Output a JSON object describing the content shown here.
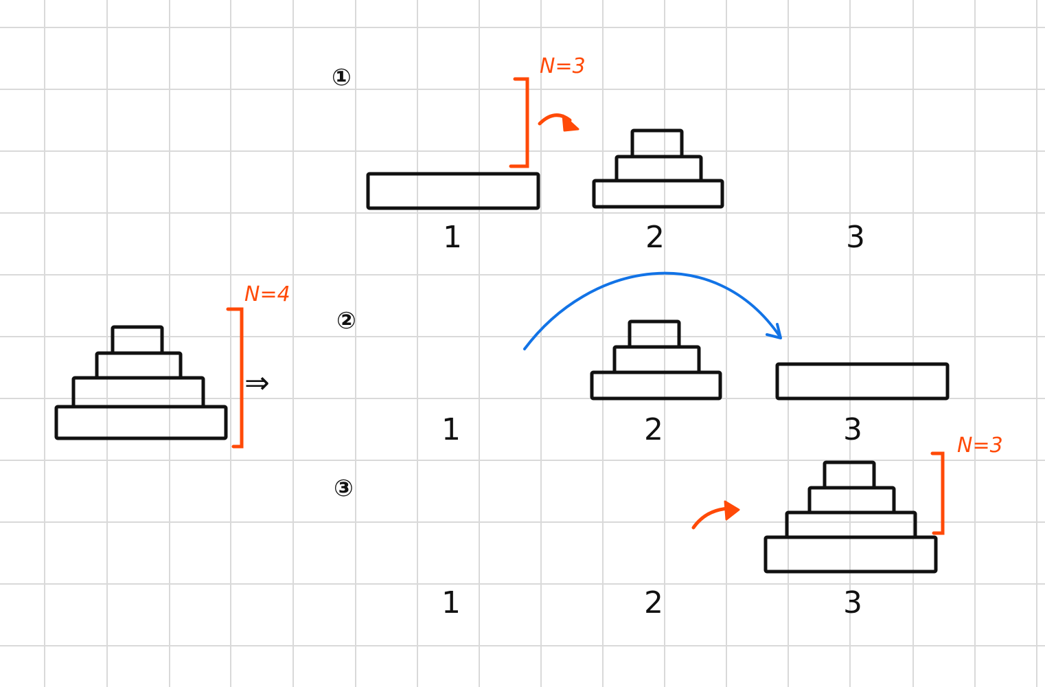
{
  "initial": {
    "n_label": "N=4",
    "implies": "⇒"
  },
  "steps": [
    {
      "number": "①",
      "n_label": "N=3",
      "peg_labels": [
        "1",
        "2",
        "3"
      ]
    },
    {
      "number": "②",
      "peg_labels": [
        "1",
        "2",
        "3"
      ]
    },
    {
      "number": "③",
      "n_label": "N=3",
      "peg_labels": [
        "1",
        "2",
        "3"
      ]
    }
  ],
  "colors": {
    "grid": "#d9d9d9",
    "ink": "#111111",
    "accent": "#ff4a08",
    "move_arrow": "#1273e6"
  }
}
